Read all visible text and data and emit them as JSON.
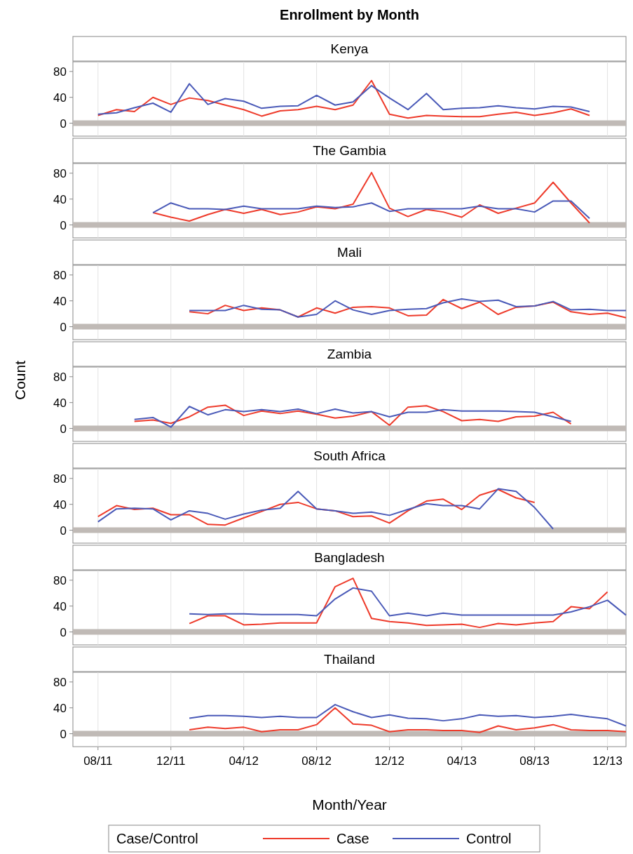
{
  "chart_data": [
    {
      "type": "line",
      "title": "Enrollment by Month",
      "subtitle": "Kenya",
      "x": [
        "2011-08",
        "2011-09",
        "2011-10",
        "2011-11",
        "2011-12",
        "2012-01",
        "2012-02",
        "2012-03",
        "2012-04",
        "2012-05",
        "2012-06",
        "2012-07",
        "2012-08",
        "2012-09",
        "2012-10",
        "2012-11",
        "2012-12",
        "2013-01",
        "2013-02",
        "2013-03",
        "2013-04",
        "2013-05",
        "2013-06",
        "2013-07",
        "2013-08",
        "2013-09",
        "2013-10",
        "2013-11"
      ],
      "xlim": [
        "2011-06-20",
        "2014-01-01"
      ],
      "ylim": [
        -20,
        95
      ],
      "yticks": [
        0,
        40,
        80
      ],
      "grid": "x",
      "tick_labels": "y",
      "legend": false,
      "line_style": "solid",
      "marker": "none",
      "ref_lines": [
        {
          "axis": "y",
          "value": 0,
          "color": "#c0bab6"
        }
      ],
      "series": [
        {
          "color": "#ee3b2b",
          "values": [
            12,
            21,
            18,
            40,
            29,
            39,
            35,
            28,
            21,
            11,
            19,
            21,
            26,
            21,
            28,
            66,
            14,
            8,
            12,
            11,
            10,
            10,
            14,
            17,
            12,
            16,
            22,
            12
          ]
        },
        {
          "color": "#4a5ab8",
          "values": [
            14,
            16,
            24,
            31,
            17,
            61,
            29,
            38,
            34,
            23,
            26,
            27,
            43,
            28,
            33,
            58,
            39,
            21,
            46,
            21,
            23,
            24,
            27,
            24,
            22,
            26,
            25,
            18
          ]
        }
      ]
    },
    {
      "type": "line",
      "subtitle": "The Gambia",
      "x": [
        "2011-11",
        "2011-12",
        "2012-01",
        "2012-02",
        "2012-03",
        "2012-04",
        "2012-05",
        "2012-06",
        "2012-07",
        "2012-08",
        "2012-09",
        "2012-10",
        "2012-11",
        "2012-12",
        "2013-01",
        "2013-02",
        "2013-03",
        "2013-04",
        "2013-05",
        "2013-06",
        "2013-07",
        "2013-08",
        "2013-09",
        "2013-10",
        "2013-11"
      ],
      "xlim": [
        "2011-06-20",
        "2014-01-01"
      ],
      "ylim": [
        -20,
        95
      ],
      "yticks": [
        0,
        40,
        80
      ],
      "grid": "x",
      "tick_labels": "y",
      "legend": false,
      "line_style": "solid",
      "marker": "none",
      "ref_lines": [
        {
          "axis": "y",
          "value": 0,
          "color": "#c0bab6"
        }
      ],
      "series": [
        {
          "color": "#ee3b2b",
          "values": [
            19,
            12,
            6,
            16,
            24,
            18,
            24,
            16,
            20,
            28,
            25,
            32,
            81,
            26,
            13,
            24,
            20,
            12,
            31,
            18,
            26,
            34,
            66,
            34,
            3
          ]
        },
        {
          "color": "#4a5ab8",
          "values": [
            19,
            34,
            25,
            25,
            24,
            29,
            25,
            25,
            25,
            29,
            27,
            28,
            34,
            21,
            25,
            25,
            25,
            25,
            29,
            25,
            25,
            20,
            37,
            37,
            10
          ]
        }
      ]
    },
    {
      "type": "line",
      "subtitle": "Mali",
      "x": [
        "2012-01",
        "2012-02",
        "2012-03",
        "2012-04",
        "2012-05",
        "2012-06",
        "2012-07",
        "2012-08",
        "2012-09",
        "2012-10",
        "2012-11",
        "2012-12",
        "2013-01",
        "2013-02",
        "2013-03",
        "2013-04",
        "2013-05",
        "2013-06",
        "2013-07",
        "2013-08",
        "2013-09",
        "2013-10",
        "2013-11",
        "2013-12",
        "2014-01"
      ],
      "xlim": [
        "2011-06-20",
        "2014-01-01"
      ],
      "ylim": [
        -20,
        95
      ],
      "yticks": [
        0,
        40,
        80
      ],
      "grid": "x",
      "tick_labels": "y",
      "legend": false,
      "line_style": "solid",
      "marker": "none",
      "ref_lines": [
        {
          "axis": "y",
          "value": 0,
          "color": "#c0bab6"
        }
      ],
      "series": [
        {
          "color": "#ee3b2b",
          "values": [
            23,
            20,
            33,
            25,
            29,
            26,
            15,
            29,
            21,
            30,
            31,
            29,
            17,
            18,
            42,
            28,
            38,
            19,
            30,
            32,
            38,
            23,
            19,
            21,
            14
          ]
        },
        {
          "color": "#4a5ab8",
          "values": [
            25,
            25,
            25,
            33,
            27,
            26,
            15,
            19,
            40,
            26,
            19,
            25,
            27,
            28,
            37,
            43,
            39,
            41,
            31,
            32,
            39,
            26,
            27,
            25,
            25
          ]
        }
      ]
    },
    {
      "type": "line",
      "subtitle": "Zambia",
      "ylabel": "Count",
      "x": [
        "2011-10",
        "2011-11",
        "2011-12",
        "2012-01",
        "2012-02",
        "2012-03",
        "2012-04",
        "2012-05",
        "2012-06",
        "2012-07",
        "2012-08",
        "2012-09",
        "2012-10",
        "2012-11",
        "2012-12",
        "2013-01",
        "2013-02",
        "2013-03",
        "2013-04",
        "2013-05",
        "2013-06",
        "2013-07",
        "2013-08",
        "2013-09",
        "2013-10"
      ],
      "xlim": [
        "2011-06-20",
        "2014-01-01"
      ],
      "ylim": [
        -20,
        95
      ],
      "yticks": [
        0,
        40,
        80
      ],
      "grid": "x",
      "tick_labels": "y",
      "legend": false,
      "line_style": "solid",
      "marker": "none",
      "ref_lines": [
        {
          "axis": "y",
          "value": 0,
          "color": "#c0bab6"
        }
      ],
      "series": [
        {
          "color": "#ee3b2b",
          "values": [
            11,
            13,
            8,
            18,
            33,
            36,
            20,
            27,
            23,
            27,
            22,
            16,
            19,
            26,
            5,
            33,
            35,
            26,
            12,
            14,
            11,
            18,
            19,
            25,
            7
          ]
        },
        {
          "color": "#4a5ab8",
          "values": [
            14,
            17,
            2,
            34,
            21,
            29,
            26,
            29,
            26,
            30,
            23,
            30,
            24,
            26,
            18,
            25,
            25,
            29,
            27,
            27,
            27,
            26,
            25,
            18,
            11
          ]
        }
      ]
    },
    {
      "type": "line",
      "subtitle": "South Africa",
      "x": [
        "2011-08",
        "2011-09",
        "2011-10",
        "2011-11",
        "2011-12",
        "2012-01",
        "2012-02",
        "2012-03",
        "2012-04",
        "2012-05",
        "2012-06",
        "2012-07",
        "2012-08",
        "2012-09",
        "2012-10",
        "2012-11",
        "2012-12",
        "2013-01",
        "2013-02",
        "2013-03",
        "2013-04",
        "2013-05",
        "2013-06",
        "2013-07",
        "2013-08",
        "2013-09"
      ],
      "xlim": [
        "2011-06-20",
        "2014-01-01"
      ],
      "ylim": [
        -20,
        95
      ],
      "yticks": [
        0,
        40,
        80
      ],
      "grid": "x",
      "tick_labels": "y",
      "legend": false,
      "line_style": "solid",
      "marker": "none",
      "ref_lines": [
        {
          "axis": "y",
          "value": 0,
          "color": "#c0bab6"
        }
      ],
      "series": [
        {
          "color": "#ee3b2b",
          "values": [
            21,
            38,
            32,
            34,
            24,
            24,
            9,
            8,
            19,
            29,
            40,
            43,
            33,
            30,
            21,
            22,
            11,
            30,
            45,
            48,
            32,
            54,
            63,
            50,
            43,
            null
          ]
        },
        {
          "color": "#4a5ab8",
          "values": [
            13,
            33,
            34,
            33,
            16,
            30,
            26,
            17,
            25,
            31,
            34,
            60,
            33,
            30,
            26,
            28,
            23,
            32,
            41,
            38,
            38,
            33,
            64,
            60,
            35,
            2
          ]
        }
      ]
    },
    {
      "type": "line",
      "subtitle": "Bangladesh",
      "x": [
        "2012-01",
        "2012-02",
        "2012-03",
        "2012-04",
        "2012-05",
        "2012-06",
        "2012-07",
        "2012-08",
        "2012-09",
        "2012-10",
        "2012-11",
        "2012-12",
        "2013-01",
        "2013-02",
        "2013-03",
        "2013-04",
        "2013-05",
        "2013-06",
        "2013-07",
        "2013-08",
        "2013-09",
        "2013-10",
        "2013-11",
        "2013-12",
        "2014-01"
      ],
      "xlim": [
        "2011-06-20",
        "2014-01-01"
      ],
      "ylim": [
        -20,
        95
      ],
      "yticks": [
        0,
        40,
        80
      ],
      "grid": "x",
      "tick_labels": "y",
      "legend": false,
      "line_style": "solid",
      "marker": "none",
      "ref_lines": [
        {
          "axis": "y",
          "value": 0,
          "color": "#c0bab6"
        }
      ],
      "series": [
        {
          "color": "#ee3b2b",
          "values": [
            13,
            25,
            25,
            11,
            12,
            14,
            14,
            14,
            70,
            83,
            21,
            16,
            14,
            10,
            11,
            12,
            7,
            13,
            11,
            14,
            16,
            39,
            36,
            62,
            null
          ]
        },
        {
          "color": "#4a5ab8",
          "values": [
            28,
            27,
            28,
            28,
            27,
            27,
            27,
            25,
            51,
            68,
            63,
            25,
            29,
            25,
            29,
            26,
            26,
            26,
            26,
            26,
            26,
            31,
            39,
            49,
            26
          ]
        }
      ]
    },
    {
      "type": "line",
      "subtitle": "Thailand",
      "xlabel": "Month/Year",
      "legend_title": "Case/Control",
      "x": [
        "2012-01",
        "2012-02",
        "2012-03",
        "2012-04",
        "2012-05",
        "2012-06",
        "2012-07",
        "2012-08",
        "2012-09",
        "2012-10",
        "2012-11",
        "2012-12",
        "2013-01",
        "2013-02",
        "2013-03",
        "2013-04",
        "2013-05",
        "2013-06",
        "2013-07",
        "2013-08",
        "2013-09",
        "2013-10",
        "2013-11",
        "2013-12",
        "2014-01"
      ],
      "xlim": [
        "2011-06-20",
        "2014-01-01"
      ],
      "xticks": [
        {
          "value": "2011-08",
          "label": "08/11"
        },
        {
          "value": "2011-12",
          "label": "12/11"
        },
        {
          "value": "2012-04",
          "label": "04/12"
        },
        {
          "value": "2012-08",
          "label": "08/12"
        },
        {
          "value": "2012-12",
          "label": "12/12"
        },
        {
          "value": "2013-04",
          "label": "04/13"
        },
        {
          "value": "2013-08",
          "label": "08/13"
        },
        {
          "value": "2013-12",
          "label": "12/13"
        }
      ],
      "ylim": [
        -20,
        95
      ],
      "yticks": [
        0,
        40,
        80
      ],
      "grid": "x",
      "legend": "bottom",
      "line_style": "solid",
      "marker": "none",
      "ref_lines": [
        {
          "axis": "y",
          "value": 0,
          "color": "#c0bab6"
        }
      ],
      "series": [
        {
          "name": "Case",
          "color": "#ee3b2b",
          "values": [
            6,
            10,
            8,
            10,
            3,
            6,
            6,
            14,
            40,
            15,
            13,
            3,
            6,
            6,
            5,
            5,
            2,
            12,
            6,
            9,
            14,
            6,
            5,
            5,
            3
          ]
        },
        {
          "name": "Control",
          "color": "#4a5ab8",
          "values": [
            24,
            28,
            28,
            27,
            25,
            27,
            25,
            25,
            45,
            34,
            25,
            29,
            24,
            23,
            20,
            23,
            29,
            27,
            28,
            25,
            27,
            30,
            26,
            23,
            12
          ]
        }
      ]
    }
  ]
}
